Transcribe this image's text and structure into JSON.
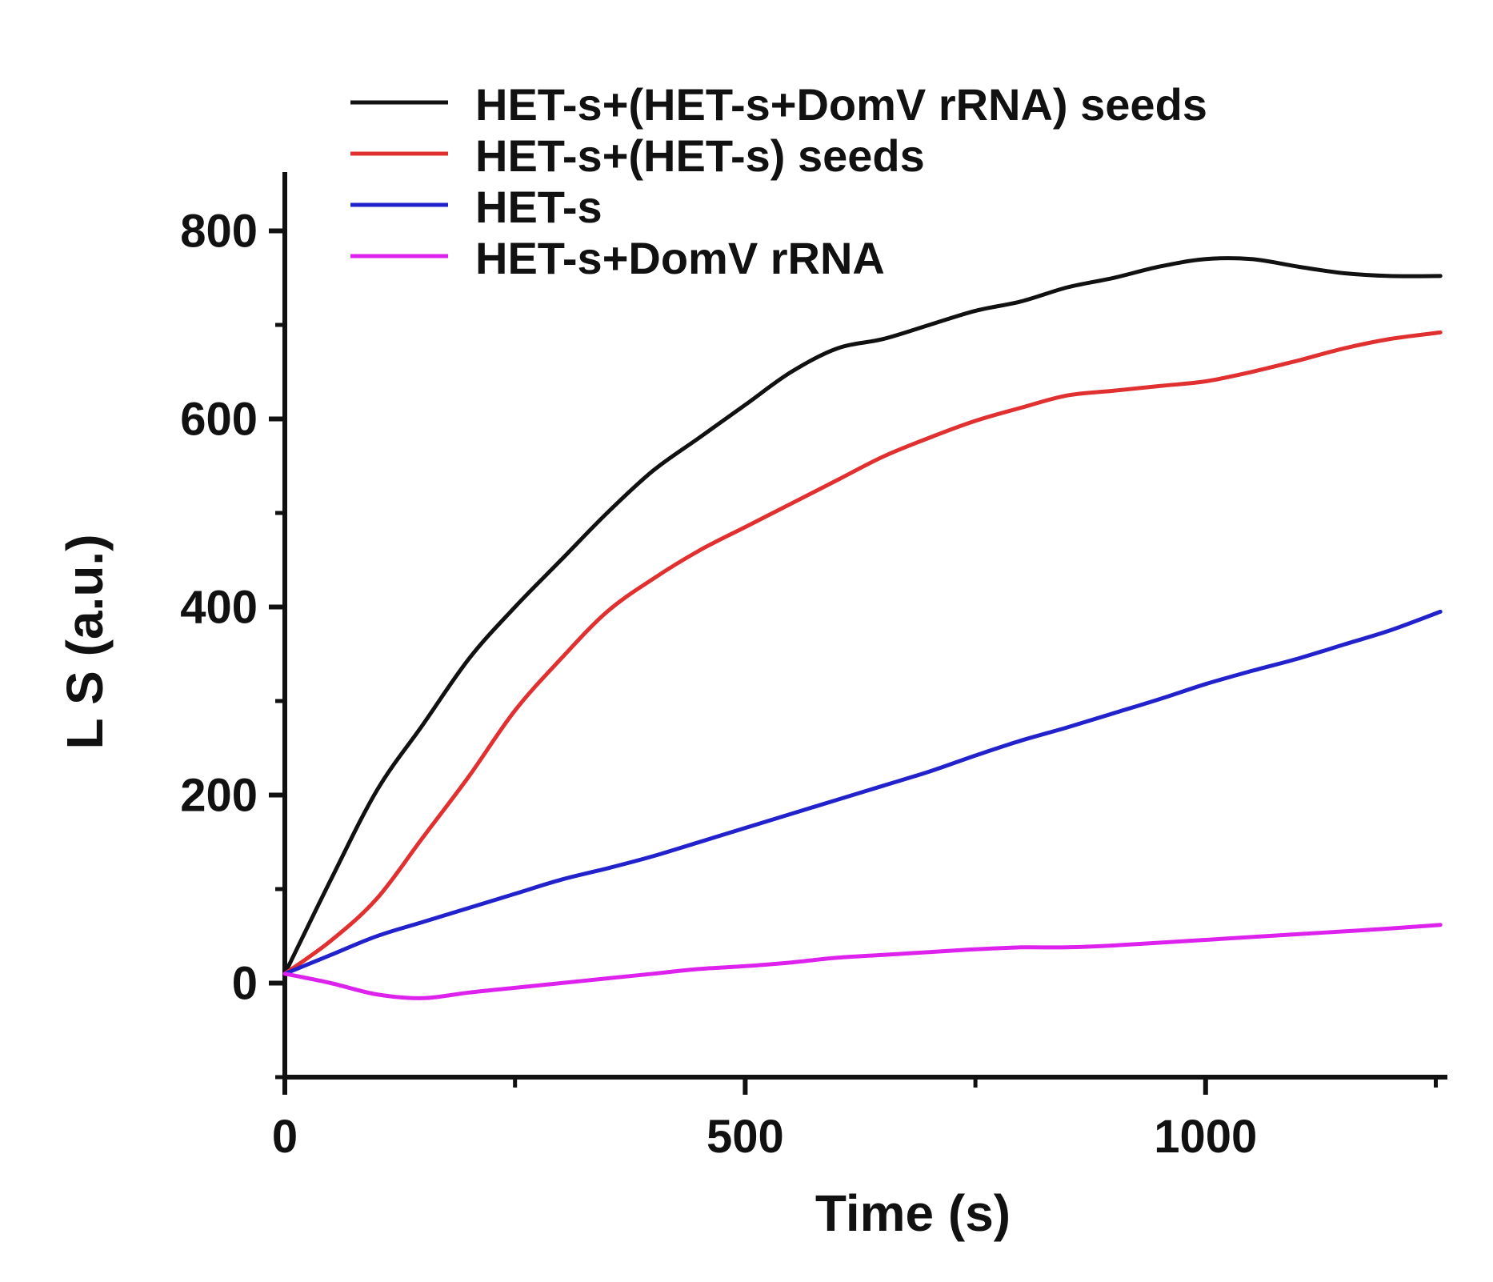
{
  "chart_data": {
    "type": "line",
    "title": "",
    "xlabel": "Time (s)",
    "ylabel": "L S (a.u.)",
    "xlim": [
      0,
      1260
    ],
    "ylim": [
      -100,
      860
    ],
    "xticks": [
      0,
      500,
      1000
    ],
    "xtick_labels": [
      "0",
      "500",
      "1000"
    ],
    "yticks": [
      0,
      200,
      400,
      600,
      800
    ],
    "ytick_labels": [
      "0",
      "200",
      "400",
      "600",
      "800"
    ],
    "grid": false,
    "legend_position": "top-right",
    "series": [
      {
        "name": "HET-s+(HET-s+DomV rRNA) seeds",
        "color": "#111111",
        "x": [
          0,
          50,
          100,
          150,
          200,
          250,
          300,
          350,
          400,
          450,
          500,
          550,
          600,
          650,
          700,
          750,
          800,
          850,
          900,
          950,
          1000,
          1050,
          1100,
          1150,
          1200,
          1255
        ],
        "y": [
          10,
          110,
          205,
          275,
          345,
          400,
          450,
          500,
          545,
          580,
          615,
          650,
          675,
          685,
          700,
          715,
          725,
          740,
          750,
          762,
          770,
          770,
          762,
          755,
          752,
          752
        ]
      },
      {
        "name": "HET-s+(HET-s) seeds",
        "color": "#e03030",
        "x": [
          0,
          50,
          100,
          150,
          200,
          250,
          300,
          350,
          400,
          450,
          500,
          550,
          600,
          650,
          700,
          750,
          800,
          850,
          900,
          950,
          1000,
          1050,
          1100,
          1150,
          1200,
          1255
        ],
        "y": [
          10,
          45,
          90,
          155,
          220,
          290,
          345,
          395,
          430,
          460,
          485,
          510,
          535,
          560,
          580,
          598,
          612,
          625,
          630,
          635,
          640,
          650,
          662,
          675,
          685,
          692
        ]
      },
      {
        "name": "HET-s",
        "color": "#2222cc",
        "x": [
          0,
          50,
          100,
          150,
          200,
          250,
          300,
          350,
          400,
          450,
          500,
          550,
          600,
          650,
          700,
          750,
          800,
          850,
          900,
          950,
          1000,
          1050,
          1100,
          1150,
          1200,
          1255
        ],
        "y": [
          10,
          30,
          50,
          65,
          80,
          95,
          110,
          122,
          135,
          150,
          165,
          180,
          195,
          210,
          225,
          242,
          258,
          272,
          287,
          302,
          318,
          332,
          345,
          360,
          375,
          395
        ]
      },
      {
        "name": "HET-s+DomV rRNA",
        "color": "#dd22ee",
        "x": [
          0,
          50,
          100,
          150,
          200,
          250,
          300,
          350,
          400,
          450,
          500,
          550,
          600,
          650,
          700,
          750,
          800,
          850,
          900,
          950,
          1000,
          1050,
          1100,
          1150,
          1200,
          1255
        ],
        "y": [
          10,
          0,
          -12,
          -16,
          -10,
          -5,
          0,
          5,
          10,
          15,
          18,
          22,
          27,
          30,
          33,
          36,
          38,
          38,
          40,
          43,
          46,
          49,
          52,
          55,
          58,
          62
        ]
      }
    ]
  }
}
